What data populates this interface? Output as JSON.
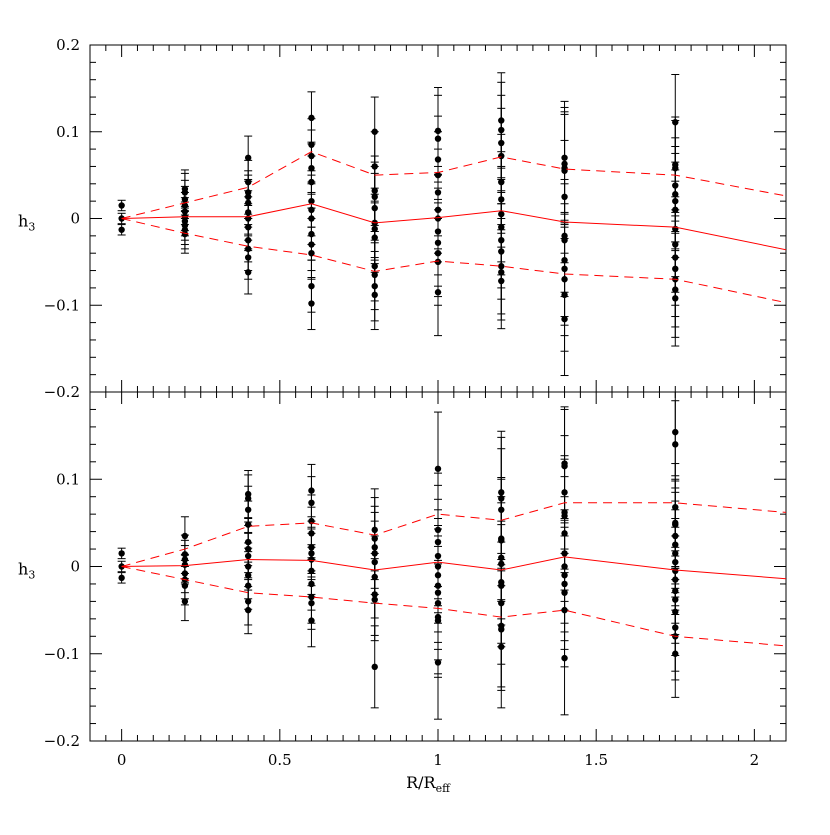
{
  "chart_data": [
    {
      "type": "scatter",
      "panel": "top",
      "ylabel": "h",
      "ylabel_sub": "3",
      "xlim": [
        -0.1,
        2.1
      ],
      "ylim": [
        -0.2,
        0.2
      ],
      "x_ticks": [
        0,
        0.5,
        1,
        1.5,
        2
      ],
      "x_tick_labels": [],
      "y_ticks": [
        -0.2,
        -0.1,
        0,
        0.1,
        0.2
      ],
      "y_tick_labels": [
        "−0.2",
        "−0.1",
        "0",
        "0.1",
        "0.2"
      ],
      "line_color": "#ff0000",
      "marker_color": "#000000",
      "mean_line": {
        "x": [
          0,
          0.2,
          0.4,
          0.6,
          0.8,
          1.0,
          1.2,
          1.4,
          1.75,
          2.1
        ],
        "y": [
          0,
          0.002,
          0.002,
          0.017,
          -0.005,
          0.001,
          0.009,
          -0.004,
          -0.01,
          -0.036
        ]
      },
      "upper_line": {
        "x": [
          0,
          0.2,
          0.4,
          0.6,
          0.8,
          1.0,
          1.2,
          1.4,
          1.75,
          2.1
        ],
        "y": [
          0,
          0.018,
          0.036,
          0.077,
          0.05,
          0.053,
          0.071,
          0.057,
          0.05,
          0.026
        ]
      },
      "lower_line": {
        "x": [
          0,
          0.2,
          0.4,
          0.6,
          0.8,
          1.0,
          1.2,
          1.4,
          1.75,
          2.1
        ],
        "y": [
          0,
          -0.017,
          -0.032,
          -0.042,
          -0.061,
          -0.049,
          -0.055,
          -0.064,
          -0.07,
          -0.097
        ]
      },
      "groups": [
        {
          "x": 0,
          "err": 0.006,
          "values": [
            0.015,
            0.0,
            -0.013
          ]
        },
        {
          "x": 0.2,
          "err": 0.022,
          "values": [
            0.034,
            0.03,
            0.022,
            0.015,
            0.008,
            0.002,
            -0.003,
            -0.008,
            -0.013,
            -0.018
          ]
        },
        {
          "x": 0.4,
          "err": 0.025,
          "values": [
            0.07,
            0.042,
            0.03,
            0.025,
            0.018,
            0.007,
            0.0,
            -0.01,
            -0.025,
            -0.035,
            -0.045,
            -0.062
          ]
        },
        {
          "x": 0.6,
          "err": 0.03,
          "values": [
            0.116,
            0.085,
            0.072,
            0.058,
            0.042,
            0.02,
            0.01,
            0.0,
            -0.018,
            -0.03,
            -0.04,
            -0.078,
            -0.098
          ]
        },
        {
          "x": 0.8,
          "err": 0.04,
          "values": [
            0.1,
            0.06,
            0.032,
            0.025,
            0.012,
            -0.005,
            -0.012,
            -0.022,
            -0.055,
            -0.065,
            -0.078,
            -0.088
          ]
        },
        {
          "x": 1.0,
          "err": 0.05,
          "values": [
            0.101,
            0.092,
            0.068,
            0.05,
            0.03,
            0.01,
            0.0,
            -0.015,
            -0.028,
            -0.04,
            -0.05,
            -0.085
          ]
        },
        {
          "x": 1.2,
          "err": 0.055,
          "values": [
            0.113,
            0.102,
            0.087,
            0.072,
            0.042,
            0.022,
            0.005,
            -0.01,
            -0.025,
            -0.038,
            -0.055,
            -0.062,
            -0.072
          ]
        },
        {
          "x": 1.4,
          "err": 0.065,
          "values": [
            0.07,
            0.063,
            0.058,
            0.055,
            0.025,
            -0.02,
            -0.025,
            -0.048,
            -0.058,
            -0.07,
            -0.088,
            -0.116
          ]
        },
        {
          "x": 1.75,
          "err": 0.055,
          "values": [
            0.111,
            0.062,
            0.058,
            0.038,
            0.028,
            0.02,
            0.01,
            -0.012,
            -0.03,
            -0.045,
            -0.058,
            -0.07,
            -0.082,
            -0.092
          ]
        }
      ]
    },
    {
      "type": "scatter",
      "panel": "bottom",
      "xlabel": "R/R",
      "xlabel_sub": "eff",
      "ylabel": "h",
      "ylabel_sub": "3",
      "xlim": [
        -0.1,
        2.1
      ],
      "ylim": [
        -0.2,
        0.2
      ],
      "x_ticks": [
        0,
        0.5,
        1,
        1.5,
        2
      ],
      "x_tick_labels": [
        "0",
        "0.5",
        "1",
        "1.5",
        "2"
      ],
      "y_ticks": [
        -0.2,
        -0.1,
        0,
        0.1,
        0.2
      ],
      "y_tick_labels": [
        "−0.2",
        "−0.1",
        "0",
        "0.1",
        ""
      ],
      "line_color": "#ff0000",
      "marker_color": "#000000",
      "mean_line": {
        "x": [
          0,
          0.2,
          0.4,
          0.6,
          0.8,
          1.0,
          1.2,
          1.4,
          1.75,
          2.1
        ],
        "y": [
          0,
          0.001,
          0.008,
          0.007,
          -0.004,
          0.005,
          -0.004,
          0.011,
          -0.004,
          -0.014
        ]
      },
      "upper_line": {
        "x": [
          0,
          0.2,
          0.4,
          0.6,
          0.8,
          1.0,
          1.2,
          1.4,
          1.75,
          2.1
        ],
        "y": [
          0,
          0.02,
          0.046,
          0.05,
          0.036,
          0.06,
          0.053,
          0.073,
          0.073,
          0.062
        ]
      },
      "lower_line": {
        "x": [
          0,
          0.2,
          0.4,
          0.6,
          0.8,
          1.0,
          1.2,
          1.4,
          1.75,
          2.1
        ],
        "y": [
          0,
          -0.015,
          -0.03,
          -0.035,
          -0.042,
          -0.048,
          -0.058,
          -0.05,
          -0.08,
          -0.091
        ]
      },
      "groups": [
        {
          "x": 0,
          "err": 0.006,
          "values": [
            0.015,
            0.0,
            -0.013
          ]
        },
        {
          "x": 0.2,
          "err": 0.022,
          "values": [
            0.035,
            0.014,
            0.008,
            0.002,
            -0.008,
            -0.015,
            -0.022,
            -0.04
          ]
        },
        {
          "x": 0.4,
          "err": 0.027,
          "values": [
            0.083,
            0.078,
            0.065,
            0.048,
            0.028,
            0.02,
            0.012,
            0.0,
            -0.01,
            -0.022,
            -0.04,
            -0.05
          ]
        },
        {
          "x": 0.6,
          "err": 0.03,
          "values": [
            0.087,
            0.073,
            0.052,
            0.038,
            0.022,
            0.015,
            0.008,
            -0.005,
            -0.02,
            -0.035,
            -0.042,
            -0.062
          ]
        },
        {
          "x": 0.8,
          "err": 0.047,
          "values": [
            0.042,
            0.032,
            0.022,
            0.015,
            0.005,
            -0.012,
            -0.032,
            -0.038,
            -0.115
          ]
        },
        {
          "x": 1.0,
          "err": 0.065,
          "values": [
            0.112,
            0.042,
            0.028,
            0.012,
            0.0,
            -0.01,
            -0.022,
            -0.03,
            -0.042,
            -0.058,
            -0.062,
            -0.11
          ]
        },
        {
          "x": 1.2,
          "err": 0.07,
          "values": [
            0.085,
            0.078,
            0.065,
            0.032,
            0.03,
            0.01,
            0.003,
            -0.018,
            -0.022,
            -0.042,
            -0.068,
            -0.072,
            -0.092
          ]
        },
        {
          "x": 1.4,
          "err": 0.065,
          "values": [
            0.118,
            0.115,
            0.085,
            0.062,
            0.058,
            0.038,
            0.015,
            0.0,
            -0.01,
            -0.02,
            -0.03,
            -0.05,
            -0.105
          ]
        },
        {
          "x": 1.75,
          "err": 0.05,
          "values": [
            0.154,
            0.14,
            0.068,
            0.05,
            0.048,
            0.035,
            0.025,
            0.015,
            0.005,
            -0.005,
            -0.015,
            -0.028,
            -0.038,
            -0.052,
            -0.07,
            -0.08,
            -0.1
          ]
        }
      ]
    }
  ]
}
